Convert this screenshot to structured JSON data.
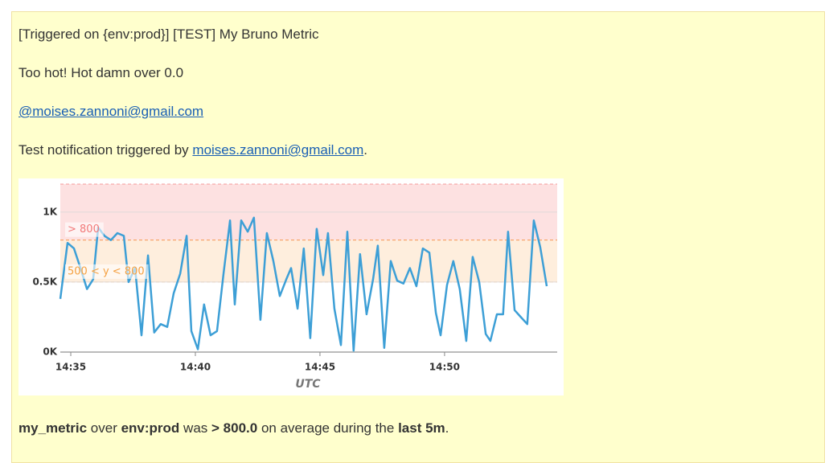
{
  "message": {
    "title": "[Triggered on {env:prod}] [TEST] My Bruno Metric",
    "body": "Too hot! Hot damn over 0.0",
    "mention": "@moises.zannoni@gmail.com",
    "test_prefix": "Test notification triggered by ",
    "test_link": "moises.zannoni@gmail.com",
    "test_suffix": ".",
    "summary": [
      {
        "text": "my_metric",
        "bold": true
      },
      {
        "text": " over ",
        "bold": false
      },
      {
        "text": "env:prod",
        "bold": true
      },
      {
        "text": " was ",
        "bold": false
      },
      {
        "text": "> 800.0",
        "bold": true
      },
      {
        "text": " on average during the ",
        "bold": false
      },
      {
        "text": "last 5m",
        "bold": true
      },
      {
        "text": ".",
        "bold": false
      }
    ]
  },
  "chart_data": {
    "type": "line",
    "x_label": "UTC",
    "color": "#3d9fd6",
    "x": [
      34.58,
      34.87,
      35.13,
      35.39,
      35.65,
      35.9,
      36.1,
      36.35,
      36.61,
      36.87,
      37.13,
      37.32,
      37.58,
      37.84,
      38.1,
      38.35,
      38.61,
      38.87,
      39.13,
      39.39,
      39.65,
      39.84,
      40.1,
      40.35,
      40.61,
      40.87,
      41.13,
      41.39,
      41.58,
      41.84,
      42.1,
      42.35,
      42.61,
      42.87,
      43.13,
      43.39,
      43.65,
      43.84,
      44.1,
      44.35,
      44.61,
      44.87,
      45.13,
      45.32,
      45.58,
      45.84,
      46.1,
      46.35,
      46.61,
      46.87,
      47.13,
      47.32,
      47.58,
      47.84,
      48.1,
      48.35,
      48.61,
      48.87,
      49.13,
      49.39,
      49.65,
      49.84,
      50.1,
      50.35,
      50.61,
      50.87,
      51.13,
      51.39,
      51.65,
      51.84,
      52.1,
      52.35,
      52.55,
      52.81,
      53.06,
      53.32,
      53.58,
      53.84,
      54.1
    ],
    "values": [
      380,
      780,
      740,
      600,
      450,
      520,
      890,
      830,
      800,
      850,
      830,
      500,
      600,
      120,
      690,
      140,
      200,
      180,
      420,
      560,
      830,
      150,
      20,
      340,
      120,
      150,
      560,
      940,
      340,
      940,
      860,
      960,
      230,
      850,
      650,
      400,
      520,
      600,
      310,
      740,
      100,
      880,
      550,
      850,
      310,
      50,
      860,
      10,
      700,
      270,
      520,
      760,
      30,
      650,
      510,
      490,
      600,
      470,
      740,
      710,
      280,
      120,
      480,
      650,
      450,
      80,
      680,
      500,
      130,
      80,
      270,
      270,
      860,
      300,
      250,
      200,
      940,
      750,
      470
    ],
    "xlim": [
      34.58,
      54.52
    ],
    "ylim": [
      0,
      1200
    ],
    "xticks": [
      {
        "value": 35,
        "label": "14:35"
      },
      {
        "value": 40,
        "label": "14:40"
      },
      {
        "value": 45,
        "label": "14:45"
      },
      {
        "value": 50,
        "label": "14:50"
      }
    ],
    "yticks": [
      {
        "value": 0,
        "label": "0K"
      },
      {
        "value": 500,
        "label": "0.5K"
      },
      {
        "value": 1000,
        "label": "1K"
      }
    ],
    "grid": true,
    "thresholds": [
      {
        "label": "> 800",
        "min": 800,
        "max": 1200,
        "color": "#fde1e1",
        "text_color": "#f27979"
      },
      {
        "label": "500 < y < 800",
        "min": 500,
        "max": 800,
        "color": "#feeedd",
        "text_color": "#f5a142"
      }
    ]
  }
}
